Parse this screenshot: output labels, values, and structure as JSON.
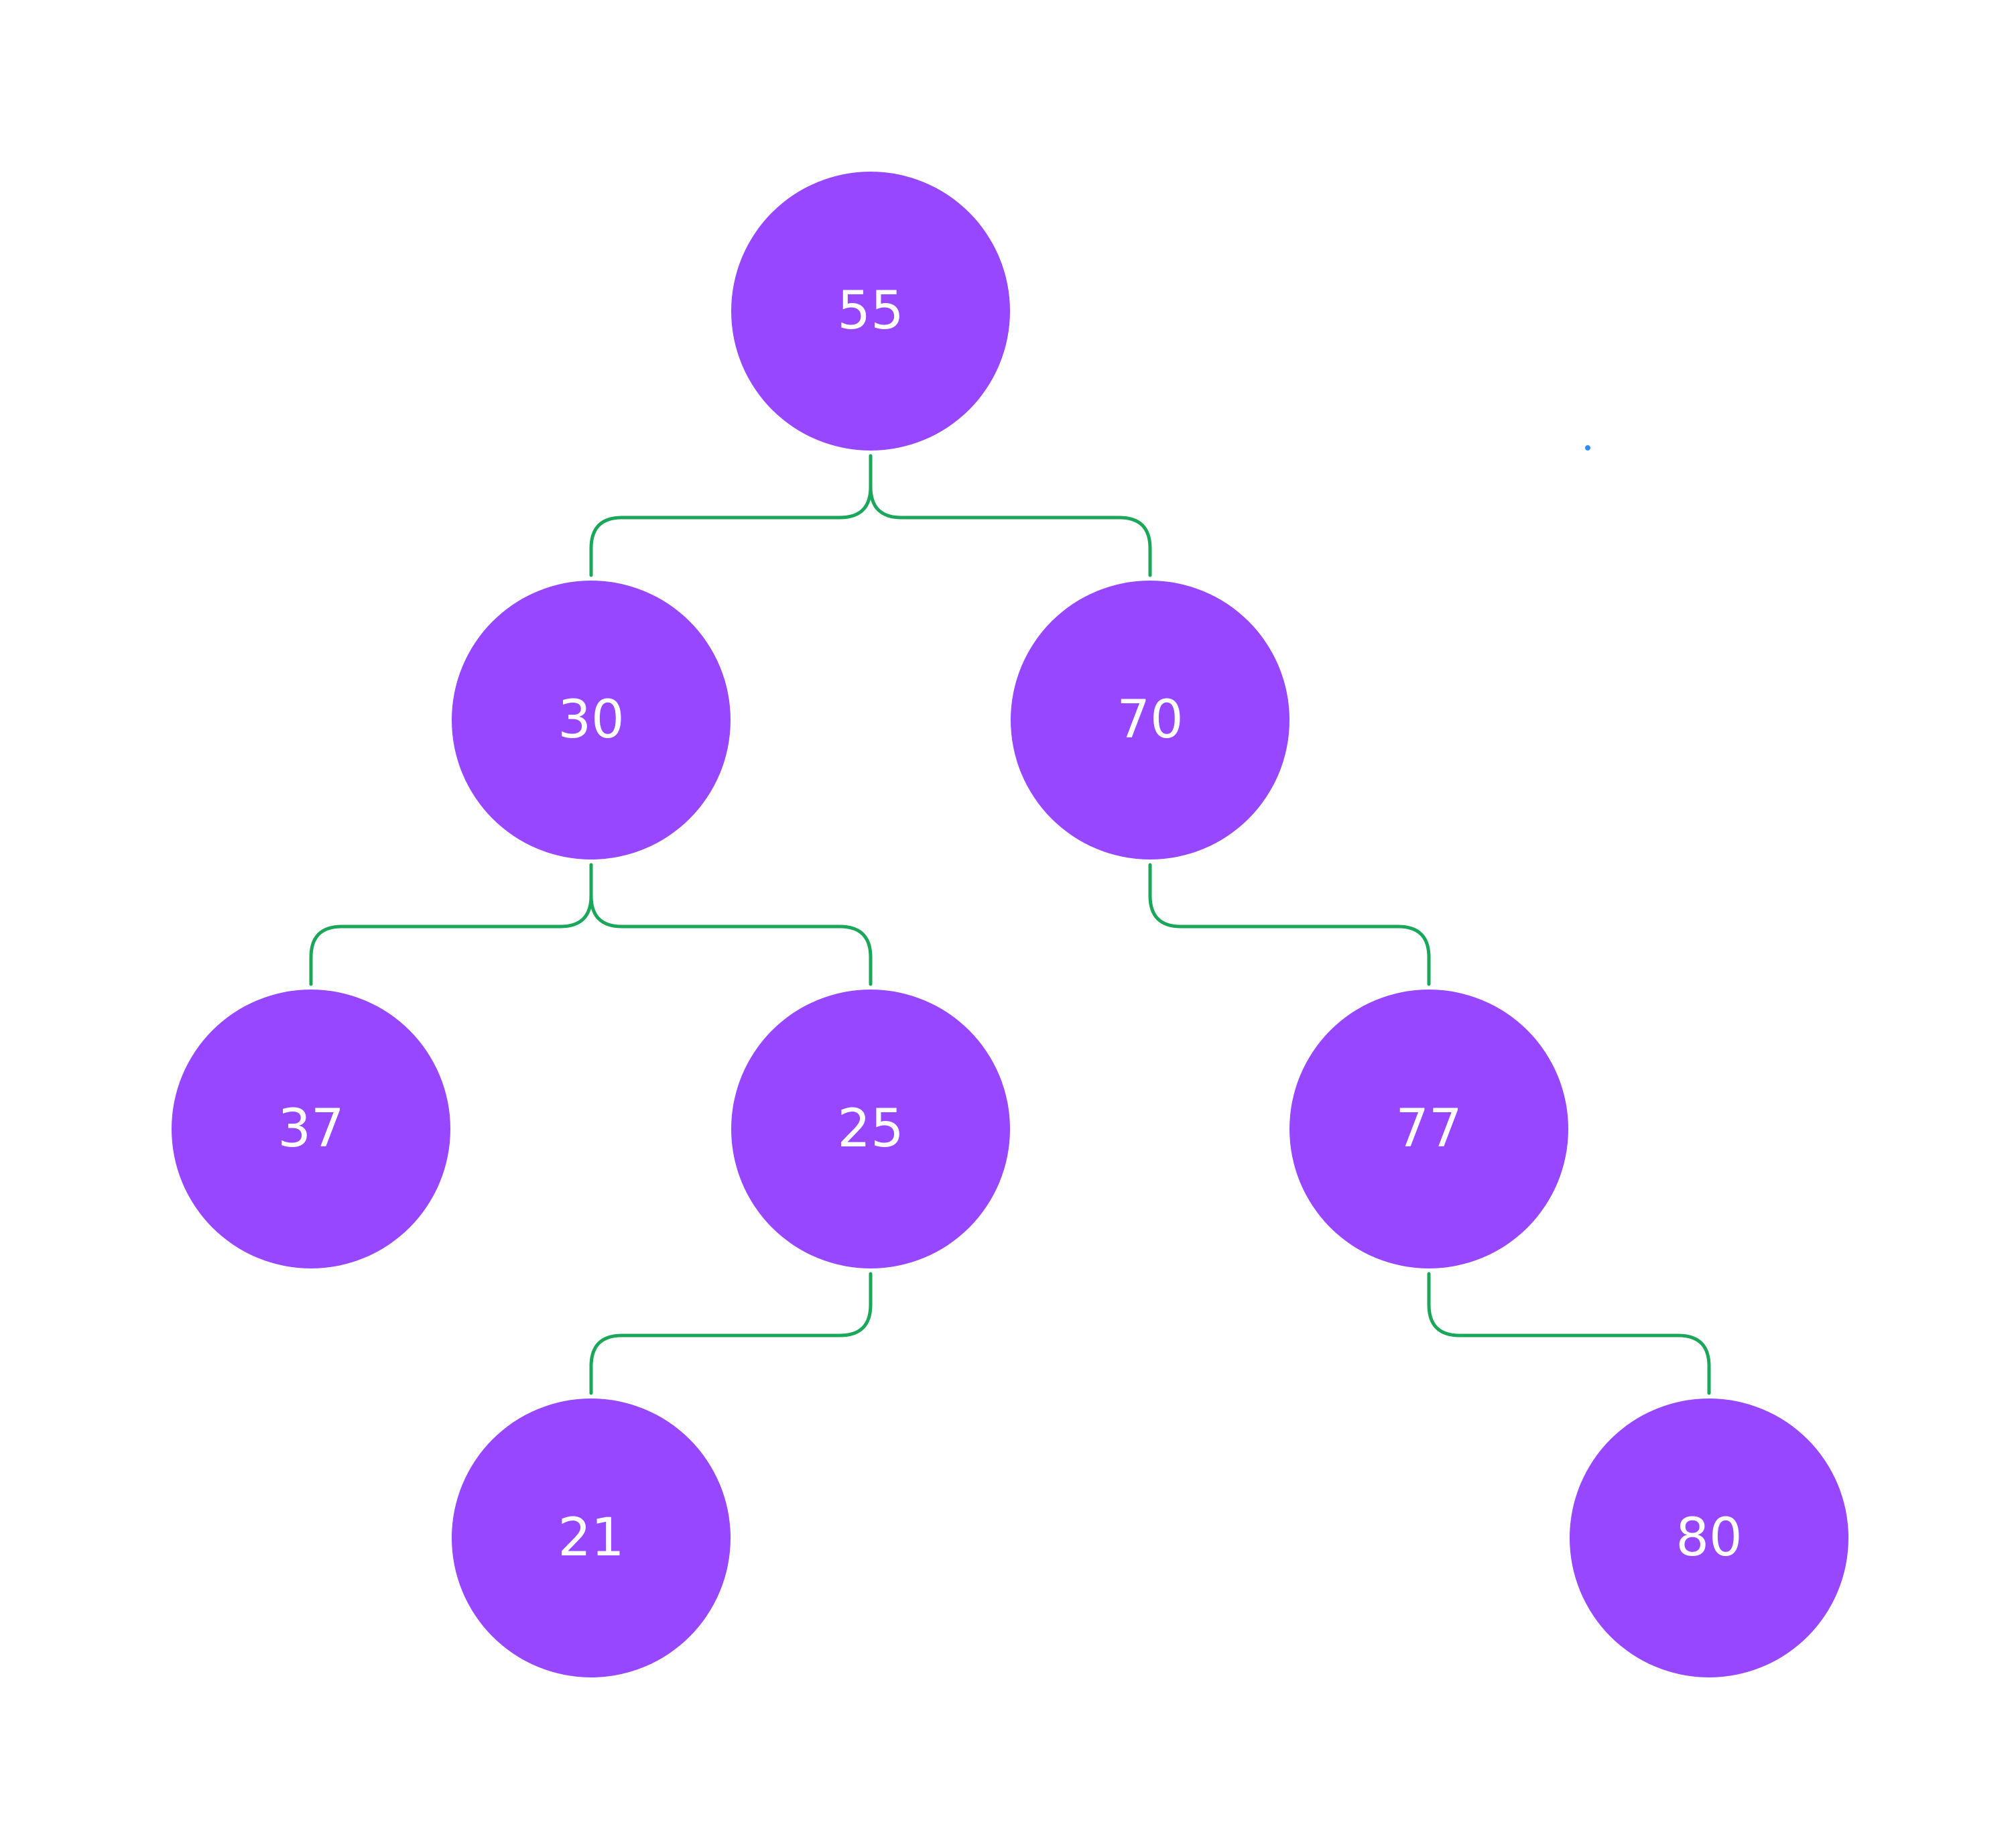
{
  "colors": {
    "node_fill": "#9747ff",
    "node_text": "#ffffff",
    "edge_stroke": "#1aa75a",
    "background": "#ffffff"
  },
  "tree": {
    "nodes": [
      {
        "id": "n55",
        "label": "55"
      },
      {
        "id": "n30",
        "label": "30"
      },
      {
        "id": "n70",
        "label": "70"
      },
      {
        "id": "n37",
        "label": "37"
      },
      {
        "id": "n25",
        "label": "25"
      },
      {
        "id": "n77",
        "label": "77"
      },
      {
        "id": "n21",
        "label": "21"
      },
      {
        "id": "n80",
        "label": "80"
      }
    ],
    "edges": [
      {
        "from": "n55",
        "to": "n30"
      },
      {
        "from": "n55",
        "to": "n70"
      },
      {
        "from": "n30",
        "to": "n37"
      },
      {
        "from": "n30",
        "to": "n25"
      },
      {
        "from": "n70",
        "to": "n77"
      },
      {
        "from": "n25",
        "to": "n21"
      },
      {
        "from": "n77",
        "to": "n80"
      }
    ]
  }
}
